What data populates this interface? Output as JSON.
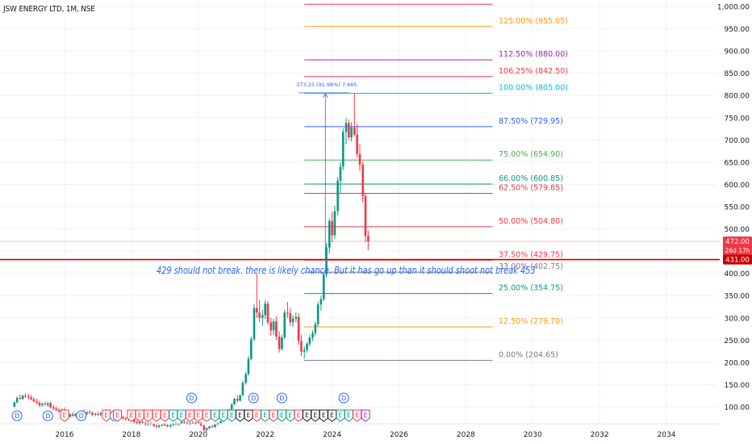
{
  "header": {
    "title": "JSW ENERGY LTD, 1M, NSE"
  },
  "annotation": {
    "text": "429 should not break. there is likely chance. But it has go up than it should shoot not break 453"
  },
  "measure_label": "373.25 (91.98%) 7,465",
  "price_badges": {
    "last": "472.00",
    "countdown": "26d 17h",
    "level": "431.00"
  },
  "colors": {
    "up": "#089981",
    "down": "#f23645",
    "hline": "#cc0000",
    "measure": "#2962ff",
    "grid": "#f0f3fa",
    "axis_text": "#131722"
  },
  "chart_data": {
    "type": "candlestick",
    "title": "JSW ENERGY LTD, 1M, NSE",
    "y_ticks": [
      100,
      150,
      200,
      250,
      300,
      350,
      400,
      450,
      500,
      550,
      600,
      650,
      700,
      750,
      800,
      850,
      900,
      950,
      1000
    ],
    "y_tick_labels": [
      "100.00",
      "150.00",
      "200.00",
      "250.00",
      "300.00",
      "350.00",
      "400.00",
      "450.00",
      "500.00",
      "550.00",
      "600.00",
      "650.00",
      "700.00",
      "750.00",
      "800.00",
      "850.00",
      "900.00",
      "950.00",
      "1,000.00"
    ],
    "x_ticks": [
      "2016",
      "2018",
      "2020",
      "2022",
      "2024",
      "2026",
      "2028",
      "2030",
      "2032",
      "2034"
    ],
    "ylim": [
      85,
      1010
    ],
    "xlim": [
      2014.5,
      2036.1
    ],
    "candles": [
      [
        2014.5,
        100,
        112,
        99,
        110
      ],
      [
        2014.58,
        110,
        124,
        108,
        120
      ],
      [
        2014.67,
        120,
        128,
        116,
        118
      ],
      [
        2014.75,
        118,
        127,
        116,
        125
      ],
      [
        2014.83,
        125,
        131,
        121,
        123
      ],
      [
        2014.92,
        123,
        129,
        117,
        121
      ],
      [
        2015.0,
        121,
        127,
        115,
        117
      ],
      [
        2015.08,
        117,
        122,
        110,
        112
      ],
      [
        2015.17,
        112,
        118,
        106,
        109
      ],
      [
        2015.25,
        109,
        114,
        100,
        104
      ],
      [
        2015.33,
        104,
        110,
        100,
        107
      ],
      [
        2015.42,
        107,
        112,
        103,
        105
      ],
      [
        2015.5,
        105,
        111,
        100,
        108
      ],
      [
        2015.58,
        108,
        112,
        97,
        99
      ],
      [
        2015.67,
        99,
        104,
        92,
        96
      ],
      [
        2015.75,
        96,
        101,
        90,
        93
      ],
      [
        2015.83,
        93,
        98,
        87,
        90
      ],
      [
        2015.92,
        90,
        96,
        86,
        94
      ],
      [
        2016.0,
        94,
        99,
        80,
        82
      ],
      [
        2016.08,
        82,
        86,
        76,
        78
      ],
      [
        2016.17,
        78,
        85,
        75,
        83
      ],
      [
        2016.25,
        83,
        88,
        78,
        80
      ],
      [
        2016.33,
        80,
        86,
        77,
        84
      ],
      [
        2016.42,
        84,
        90,
        82,
        86
      ],
      [
        2016.5,
        86,
        92,
        84,
        89
      ],
      [
        2016.58,
        89,
        94,
        83,
        85
      ],
      [
        2016.67,
        85,
        90,
        81,
        88
      ],
      [
        2016.75,
        88,
        93,
        84,
        86
      ],
      [
        2016.83,
        86,
        90,
        80,
        82
      ],
      [
        2016.92,
        82,
        87,
        79,
        84
      ],
      [
        2017.0,
        84,
        89,
        80,
        83
      ],
      [
        2017.08,
        83,
        88,
        79,
        86
      ],
      [
        2017.17,
        86,
        92,
        84,
        90
      ],
      [
        2017.25,
        90,
        95,
        85,
        87
      ],
      [
        2017.33,
        87,
        90,
        80,
        82
      ],
      [
        2017.42,
        82,
        86,
        78,
        80
      ],
      [
        2017.5,
        80,
        84,
        75,
        78
      ],
      [
        2017.58,
        78,
        82,
        73,
        80
      ],
      [
        2017.67,
        80,
        85,
        76,
        77
      ],
      [
        2017.75,
        77,
        81,
        72,
        74
      ],
      [
        2017.83,
        74,
        78,
        69,
        72
      ],
      [
        2017.92,
        72,
        77,
        68,
        75
      ],
      [
        2018.0,
        75,
        79,
        70,
        71
      ],
      [
        2018.08,
        71,
        74,
        64,
        66
      ],
      [
        2018.17,
        66,
        70,
        60,
        62
      ],
      [
        2018.25,
        62,
        68,
        59,
        66
      ],
      [
        2018.33,
        66,
        70,
        62,
        64
      ],
      [
        2018.42,
        64,
        68,
        58,
        60
      ],
      [
        2018.5,
        60,
        66,
        57,
        63
      ],
      [
        2018.58,
        63,
        67,
        59,
        61
      ],
      [
        2018.67,
        61,
        64,
        55,
        57
      ],
      [
        2018.75,
        57,
        61,
        52,
        55
      ],
      [
        2018.83,
        55,
        60,
        53,
        58
      ],
      [
        2018.92,
        58,
        63,
        56,
        60
      ],
      [
        2019.0,
        60,
        64,
        57,
        59
      ],
      [
        2019.08,
        59,
        62,
        54,
        56
      ],
      [
        2019.17,
        56,
        61,
        53,
        59
      ],
      [
        2019.25,
        59,
        64,
        57,
        62
      ],
      [
        2019.33,
        62,
        66,
        58,
        60
      ],
      [
        2019.42,
        60,
        64,
        57,
        63
      ],
      [
        2019.5,
        63,
        68,
        61,
        66
      ],
      [
        2019.58,
        66,
        70,
        62,
        64
      ],
      [
        2019.67,
        64,
        68,
        60,
        62
      ],
      [
        2019.75,
        62,
        66,
        58,
        64
      ],
      [
        2019.83,
        64,
        68,
        61,
        63
      ],
      [
        2019.92,
        63,
        67,
        60,
        65
      ],
      [
        2020.0,
        65,
        69,
        62,
        64
      ],
      [
        2020.08,
        64,
        66,
        56,
        58
      ],
      [
        2020.17,
        58,
        60,
        45,
        48
      ],
      [
        2020.25,
        48,
        54,
        44,
        52
      ],
      [
        2020.33,
        52,
        58,
        50,
        56
      ],
      [
        2020.42,
        56,
        60,
        53,
        55
      ],
      [
        2020.5,
        55,
        62,
        53,
        60
      ],
      [
        2020.58,
        60,
        66,
        58,
        64
      ],
      [
        2020.67,
        64,
        70,
        62,
        68
      ],
      [
        2020.75,
        68,
        76,
        66,
        74
      ],
      [
        2020.83,
        74,
        86,
        72,
        84
      ],
      [
        2020.92,
        84,
        96,
        82,
        94
      ],
      [
        2021.0,
        94,
        108,
        92,
        106
      ],
      [
        2021.08,
        106,
        120,
        104,
        118
      ],
      [
        2021.17,
        118,
        126,
        110,
        114
      ],
      [
        2021.25,
        114,
        128,
        112,
        126
      ],
      [
        2021.33,
        126,
        158,
        124,
        154
      ],
      [
        2021.42,
        154,
        178,
        150,
        174
      ],
      [
        2021.5,
        174,
        214,
        170,
        208
      ],
      [
        2021.58,
        208,
        258,
        204,
        252
      ],
      [
        2021.67,
        252,
        330,
        248,
        322
      ],
      [
        2021.75,
        322,
        398,
        300,
        312
      ],
      [
        2021.83,
        312,
        340,
        290,
        300
      ],
      [
        2021.92,
        300,
        318,
        282,
        306
      ],
      [
        2022.0,
        306,
        340,
        298,
        332
      ],
      [
        2022.08,
        332,
        338,
        284,
        290
      ],
      [
        2022.17,
        290,
        300,
        260,
        272
      ],
      [
        2022.25,
        272,
        298,
        262,
        292
      ],
      [
        2022.33,
        292,
        304,
        250,
        258
      ],
      [
        2022.42,
        258,
        270,
        222,
        230
      ],
      [
        2022.5,
        230,
        262,
        226,
        256
      ],
      [
        2022.58,
        256,
        318,
        252,
        312
      ],
      [
        2022.67,
        312,
        336,
        300,
        310
      ],
      [
        2022.75,
        310,
        322,
        282,
        290
      ],
      [
        2022.83,
        290,
        306,
        280,
        298
      ],
      [
        2022.92,
        298,
        312,
        290,
        302
      ],
      [
        2023.0,
        302,
        310,
        240,
        248
      ],
      [
        2023.08,
        248,
        262,
        214,
        224
      ],
      [
        2023.17,
        224,
        236,
        208,
        228
      ],
      [
        2023.25,
        228,
        246,
        222,
        242
      ],
      [
        2023.33,
        242,
        262,
        236,
        256
      ],
      [
        2023.42,
        256,
        272,
        248,
        266
      ],
      [
        2023.5,
        266,
        292,
        260,
        286
      ],
      [
        2023.58,
        286,
        336,
        280,
        330
      ],
      [
        2023.67,
        330,
        350,
        316,
        342
      ],
      [
        2023.75,
        342,
        402,
        338,
        398
      ],
      [
        2023.83,
        398,
        468,
        392,
        458
      ],
      [
        2023.92,
        458,
        524,
        444,
        518
      ],
      [
        2024.0,
        518,
        538,
        470,
        486
      ],
      [
        2024.08,
        486,
        552,
        478,
        540
      ],
      [
        2024.17,
        540,
        616,
        530,
        608
      ],
      [
        2024.25,
        608,
        650,
        580,
        640
      ],
      [
        2024.33,
        640,
        726,
        632,
        718
      ],
      [
        2024.42,
        718,
        748,
        690,
        738
      ],
      [
        2024.5,
        738,
        746,
        700,
        706
      ],
      [
        2024.58,
        706,
        740,
        696,
        728
      ],
      [
        2024.67,
        728,
        805,
        708,
        712
      ],
      [
        2024.75,
        712,
        736,
        660,
        668
      ],
      [
        2024.83,
        668,
        690,
        630,
        644
      ],
      [
        2024.92,
        644,
        652,
        560,
        574
      ],
      [
        2025.0,
        574,
        580,
        470,
        484
      ],
      [
        2025.08,
        484,
        496,
        452,
        472
      ]
    ],
    "fib_levels": [
      {
        "label": "0.00% (204.65)",
        "value": 204.65,
        "color": "#787b86"
      },
      {
        "label": "12.50% (279.70)",
        "value": 279.7,
        "color": "#ff9800"
      },
      {
        "label": "25.00% (354.75)",
        "value": 354.75,
        "color": "#089981"
      },
      {
        "label": "33.00% (402.75)",
        "value": 402.75,
        "color": "#787b86"
      },
      {
        "label": "37.50% (429.75)",
        "value": 429.75,
        "color": "#f23645"
      },
      {
        "label": "50.00% (504.80)",
        "value": 504.8,
        "color": "#f23645"
      },
      {
        "label": "62.50% (579.85)",
        "value": 579.85,
        "color": "#f23645"
      },
      {
        "label": "66.00% (600.85)",
        "value": 600.85,
        "color": "#089981"
      },
      {
        "label": "75.00% (654.90)",
        "value": 654.9,
        "color": "#4caf50"
      },
      {
        "label": "87.50% (729.95)",
        "value": 729.95,
        "color": "#2962ff"
      },
      {
        "label": "100.00% (805.00)",
        "value": 805.0,
        "color": "#00bcd4"
      },
      {
        "label": "106.25% (842.50)",
        "value": 842.5,
        "color": "#f23645"
      },
      {
        "label": "112.50% (880.00)",
        "value": 880.0,
        "color": "#9c27b0"
      },
      {
        "label": "125.00% (955.05)",
        "value": 955.05,
        "color": "#ff9800"
      },
      {
        "label": "",
        "value": 1005,
        "color": "#f23645"
      }
    ],
    "fib_x_range": [
      2023.17,
      2028.8
    ],
    "horizontal_levels": [
      {
        "value": 472.0,
        "color": "#f7a3aa",
        "style": "thin"
      },
      {
        "value": 431.0,
        "color": "#cc0000",
        "style": "thick"
      }
    ],
    "measure": {
      "x": 2023.0,
      "x_end": 2024.5,
      "from": 431,
      "to": 804,
      "label": "373.25 (91.98%) 7,465"
    },
    "event_markers": [
      {
        "x": 2014.58,
        "label": "D",
        "kind": "dividend"
      },
      {
        "x": 2015.5,
        "label": "D",
        "kind": "dividend"
      },
      {
        "x": 2016.0,
        "label": "E",
        "kind": "earnings-red"
      },
      {
        "x": 2016.5,
        "label": "D",
        "kind": "dividend"
      },
      {
        "x": 2017.25,
        "label": "E",
        "kind": "earnings-red"
      },
      {
        "x": 2017.5,
        "label": "D",
        "kind": "dividend"
      },
      {
        "x": 2017.58,
        "label": "E",
        "kind": "earnings-red"
      },
      {
        "x": 2018.0,
        "label": "E",
        "kind": "earnings-red"
      },
      {
        "x": 2018.25,
        "label": "E",
        "kind": "earnings-red"
      },
      {
        "x": 2018.5,
        "label": "E",
        "kind": "earnings-red"
      },
      {
        "x": 2018.75,
        "label": "E",
        "kind": "earnings-red"
      },
      {
        "x": 2019.0,
        "label": "E",
        "kind": "earnings-red"
      },
      {
        "x": 2019.25,
        "label": "E",
        "kind": "earnings-green"
      },
      {
        "x": 2019.5,
        "label": "E",
        "kind": "earnings-green"
      },
      {
        "x": 2019.75,
        "label": "E",
        "kind": "earnings-red"
      },
      {
        "x": 2020.0,
        "label": "E",
        "kind": "earnings-red"
      },
      {
        "x": 2020.25,
        "label": "E",
        "kind": "earnings-red"
      },
      {
        "x": 2020.5,
        "label": "E",
        "kind": "earnings-green"
      },
      {
        "x": 2020.75,
        "label": "E",
        "kind": "earnings-green"
      },
      {
        "x": 2021.0,
        "label": "E",
        "kind": "earnings-green"
      },
      {
        "x": 2021.25,
        "label": "E",
        "kind": "earnings-gray"
      },
      {
        "x": 2021.5,
        "label": "E",
        "kind": "earnings-gray"
      },
      {
        "x": 2021.75,
        "label": "E",
        "kind": "earnings-red"
      },
      {
        "x": 2022.0,
        "label": "E",
        "kind": "earnings-green"
      },
      {
        "x": 2022.25,
        "label": "E",
        "kind": "earnings-red"
      },
      {
        "x": 2022.5,
        "label": "E",
        "kind": "earnings-green"
      },
      {
        "x": 2022.75,
        "label": "E",
        "kind": "earnings-green"
      },
      {
        "x": 2023.0,
        "label": "E",
        "kind": "earnings-red"
      },
      {
        "x": 2023.25,
        "label": "E",
        "kind": "earnings-gray"
      },
      {
        "x": 2023.5,
        "label": "E",
        "kind": "earnings-gray"
      },
      {
        "x": 2023.75,
        "label": "E",
        "kind": "earnings-gray"
      },
      {
        "x": 2024.0,
        "label": "E",
        "kind": "earnings-gray"
      },
      {
        "x": 2024.25,
        "label": "E",
        "kind": "earnings-green"
      },
      {
        "x": 2024.5,
        "label": "E",
        "kind": "earnings-green"
      },
      {
        "x": 2024.75,
        "label": "E",
        "kind": "earnings-red"
      },
      {
        "x": 2025.0,
        "label": "E",
        "kind": "earnings-purple"
      },
      {
        "x": 2019.8,
        "label": "D",
        "kind": "dividend-high"
      },
      {
        "x": 2021.65,
        "label": "D",
        "kind": "dividend-high"
      },
      {
        "x": 2022.5,
        "label": "D",
        "kind": "dividend-high"
      },
      {
        "x": 2024.35,
        "label": "D",
        "kind": "dividend-high"
      }
    ]
  }
}
